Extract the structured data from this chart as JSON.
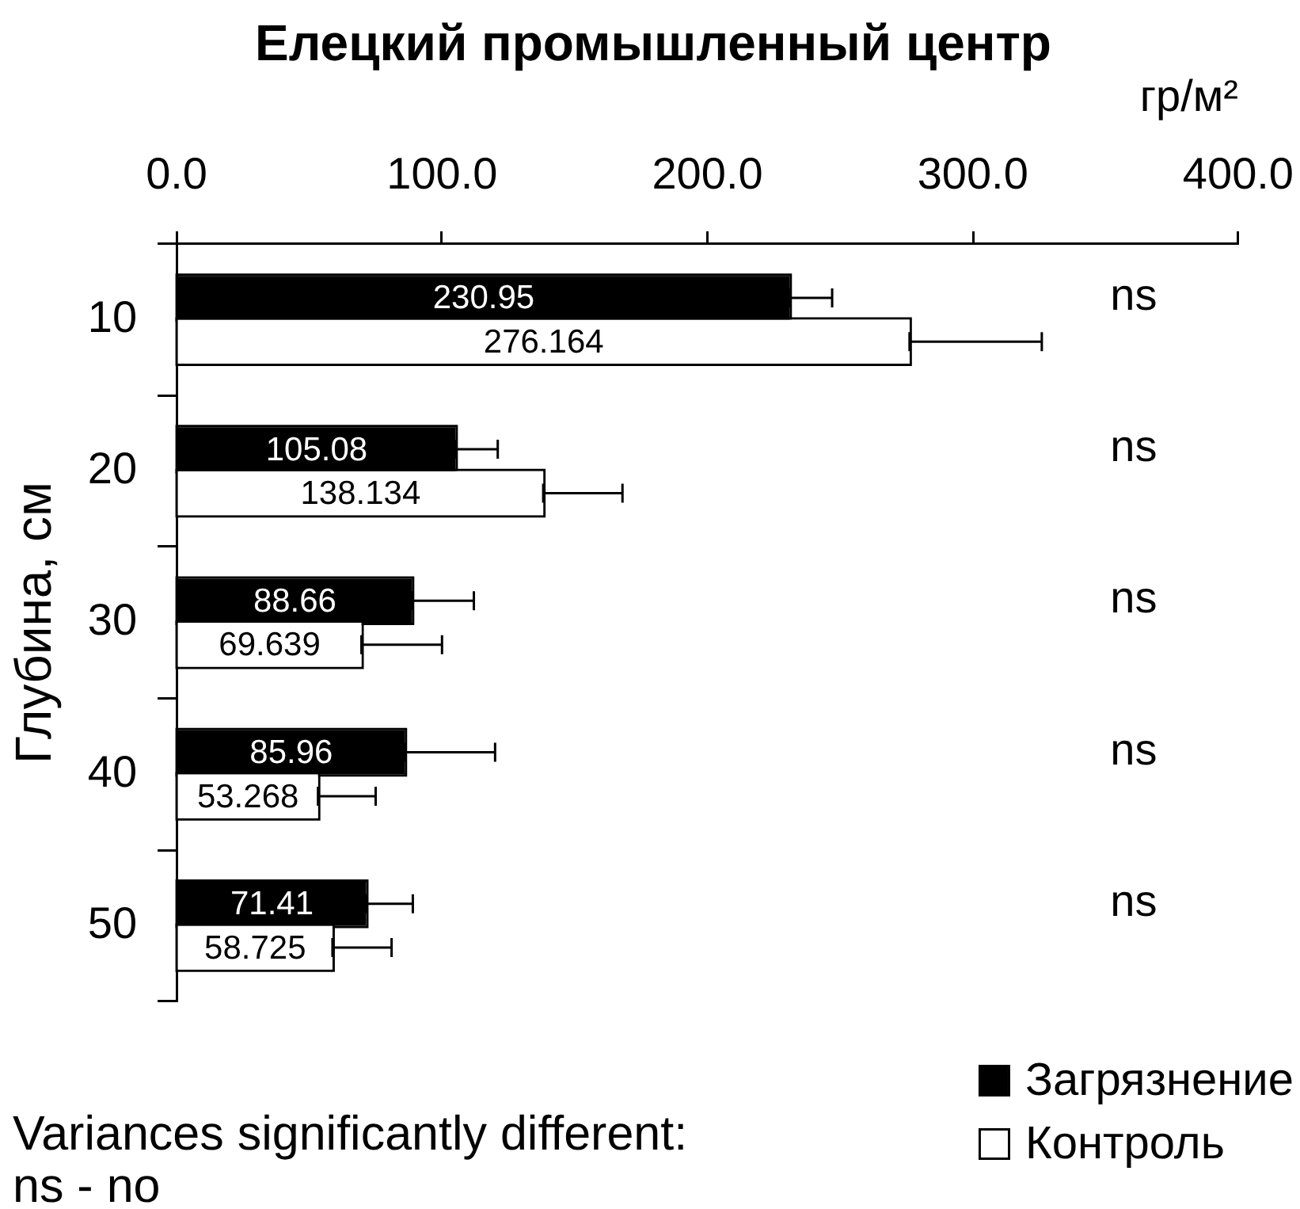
{
  "chart_data": {
    "type": "bar",
    "orientation": "horizontal",
    "title": "Елецкий промышленный центр",
    "xlabel": "гр/м²",
    "ylabel": "Глубина, см",
    "categories": [
      "10",
      "20",
      "30",
      "40",
      "50"
    ],
    "series": [
      {
        "name": "Загрязнение",
        "color": "#000000",
        "values": [
          230.95,
          105.08,
          88.66,
          85.96,
          71.41
        ],
        "errors": [
          [
            230.95,
            247
          ],
          [
            105.08,
            121
          ],
          [
            88.66,
            112
          ],
          [
            85.96,
            120
          ],
          [
            71.41,
            89
          ]
        ]
      },
      {
        "name": "Контроль",
        "color": "#ffffff",
        "values": [
          276.164,
          138.134,
          69.639,
          53.268,
          58.725
        ],
        "errors": [
          [
            276.164,
            326
          ],
          [
            138.134,
            168
          ],
          [
            69.639,
            100
          ],
          [
            53.268,
            75
          ],
          [
            58.725,
            81
          ]
        ]
      }
    ],
    "xlim": [
      0,
      400
    ],
    "xticks": [
      {
        "value": 0,
        "label": "0.0"
      },
      {
        "value": 100,
        "label": "100.0"
      },
      {
        "value": 200,
        "label": "200.0"
      },
      {
        "value": 300,
        "label": "300.0"
      },
      {
        "value": 400,
        "label": "400.0"
      }
    ],
    "data_labels": true,
    "grid": false,
    "legend": "bottom right",
    "annotations": [
      "ns",
      "ns",
      "ns",
      "ns",
      "ns",
      "Variances significantly different:",
      "ns - no"
    ]
  }
}
